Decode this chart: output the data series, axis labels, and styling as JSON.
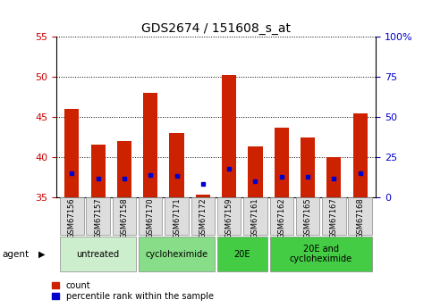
{
  "title": "GDS2674 / 151608_s_at",
  "samples": [
    "GSM67156",
    "GSM67157",
    "GSM67158",
    "GSM67170",
    "GSM67171",
    "GSM67172",
    "GSM67159",
    "GSM67161",
    "GSM67162",
    "GSM67165",
    "GSM67167",
    "GSM67168"
  ],
  "count_values": [
    46.0,
    41.5,
    42.0,
    48.0,
    43.0,
    35.3,
    50.3,
    41.3,
    43.7,
    42.5,
    40.0,
    45.5
  ],
  "percentile_values": [
    38.0,
    37.3,
    37.3,
    37.8,
    37.6,
    36.6,
    38.5,
    37.0,
    37.5,
    37.5,
    37.3,
    38.0
  ],
  "ylim_left": [
    35,
    55
  ],
  "ylim_right": [
    0,
    100
  ],
  "yticks_left": [
    35,
    40,
    45,
    50,
    55
  ],
  "yticks_right": [
    0,
    25,
    50,
    75,
    100
  ],
  "ytick_labels_right": [
    "0",
    "25",
    "50",
    "75",
    "100%"
  ],
  "bar_color": "#cc2200",
  "percentile_color": "#0000cc",
  "bar_width": 0.55,
  "group_defs": [
    {
      "label": "untreated",
      "start": 0,
      "end": 2,
      "color": "#cceecc"
    },
    {
      "label": "cycloheximide",
      "start": 3,
      "end": 5,
      "color": "#88dd88"
    },
    {
      "label": "20E",
      "start": 6,
      "end": 7,
      "color": "#44cc44"
    },
    {
      "label": "20E and\ncycloheximide",
      "start": 8,
      "end": 11,
      "color": "#44cc44"
    }
  ],
  "agent_label": "agent",
  "left_tick_color": "#cc0000",
  "right_tick_color": "#0000cc",
  "background_color": "#ffffff",
  "title_fontsize": 10,
  "tick_fontsize": 8,
  "sample_fontsize": 6,
  "group_fontsize": 7,
  "legend_fontsize": 7
}
